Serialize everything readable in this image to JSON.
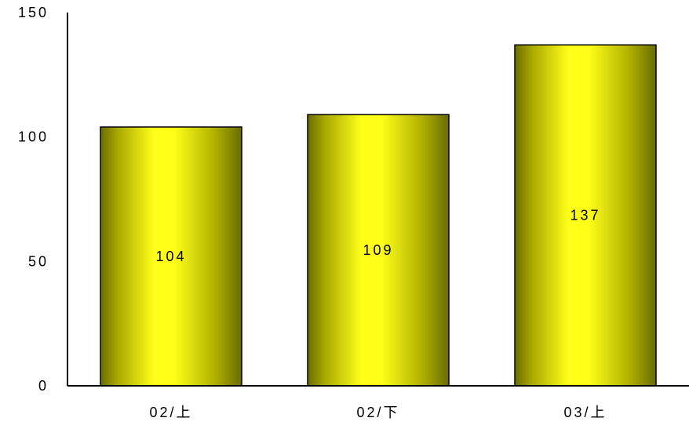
{
  "chart_data": {
    "type": "bar",
    "title": "",
    "xlabel": "",
    "ylabel": "",
    "categories": [
      "02/上",
      "02/下",
      "03/上"
    ],
    "values": [
      104,
      109,
      137
    ],
    "data_labels": [
      "104",
      "109",
      "137"
    ],
    "ylim": [
      0,
      150
    ],
    "yticks": [
      0,
      50,
      100,
      150
    ],
    "ytick_labels": [
      "0",
      "50",
      "100",
      "150"
    ],
    "grid": false,
    "legend": "none",
    "colors": {
      "bar_light": "#ffff1a",
      "bar_dark": "#6b6b00",
      "axis": "#000000"
    }
  }
}
